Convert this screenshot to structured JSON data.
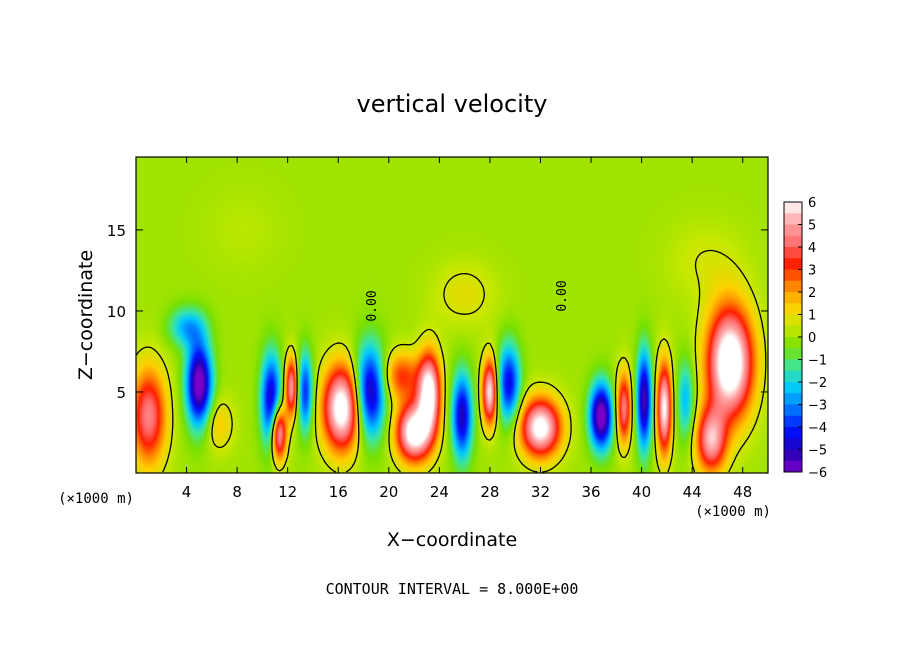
{
  "chart_data": {
    "type": "heatmap",
    "title": "vertical velocity",
    "xlabel": "X−coordinate",
    "ylabel": "Z−coordinate",
    "x_unit_label": "(×1000 m)",
    "y_unit_label": "(×1000 m)",
    "footer": "CONTOUR INTERVAL = 8.000E+00",
    "contour_label": "0.00",
    "xlim": [
      0,
      50
    ],
    "ylim": [
      0,
      19.5
    ],
    "x_ticks": [
      4,
      8,
      12,
      16,
      20,
      24,
      28,
      32,
      36,
      40,
      44,
      48
    ],
    "x_tick_labels": [
      "4",
      "8",
      "12",
      "16",
      "20",
      "24",
      "28",
      "32",
      "36",
      "40",
      "44",
      "48"
    ],
    "y_ticks": [
      5,
      10,
      15
    ],
    "y_tick_labels": [
      "5",
      "10",
      "15"
    ],
    "colorbar": {
      "min": -6,
      "max": 6,
      "tick_values": [
        6,
        5,
        4,
        3,
        2,
        1,
        0,
        -1,
        -2,
        -3,
        -4,
        -5,
        -6
      ],
      "tick_labels": [
        "6",
        "5",
        "4",
        "3",
        "2",
        "1",
        "0",
        "−1",
        "−2",
        "−3",
        "−4",
        "−5",
        "−6"
      ],
      "colors": [
        "#7a00c8",
        "#2400b4",
        "#0010ff",
        "#0070ff",
        "#00c8ff",
        "#3ce6a0",
        "#78e000",
        "#c8e800",
        "#ffd000",
        "#ff8200",
        "#ff1e00",
        "#ff6e6e",
        "#ffa8a8",
        "#ffffff"
      ]
    },
    "cells": [
      {
        "x": 1.0,
        "z": 3.5,
        "sx": 1.4,
        "sz": 3.0,
        "w": 4.5
      },
      {
        "x": 5.0,
        "z": 5.5,
        "sx": 1.0,
        "sz": 2.6,
        "w": -6.5
      },
      {
        "x": 4.0,
        "z": 9.0,
        "sx": 1.4,
        "sz": 1.2,
        "w": -2.5
      },
      {
        "x": 6.5,
        "z": 3.0,
        "sx": 1.2,
        "sz": 1.6,
        "w": 1.5
      },
      {
        "x": 11.3,
        "z": 2.5,
        "sx": 0.6,
        "sz": 1.7,
        "w": 6.0
      },
      {
        "x": 12.3,
        "z": 5.3,
        "sx": 0.5,
        "sz": 1.8,
        "w": 5.0
      },
      {
        "x": 10.7,
        "z": 4.5,
        "sx": 0.8,
        "sz": 2.8,
        "w": -5.0
      },
      {
        "x": 13.4,
        "z": 5.0,
        "sx": 0.6,
        "sz": 2.4,
        "w": -4.0
      },
      {
        "x": 16.3,
        "z": 4.0,
        "sx": 1.5,
        "sz": 2.6,
        "w": 6.8
      },
      {
        "x": 18.5,
        "z": 5.0,
        "sx": 1.2,
        "sz": 2.8,
        "w": -5.5
      },
      {
        "x": 22.0,
        "z": 2.5,
        "sx": 1.4,
        "sz": 1.8,
        "w": 6.8
      },
      {
        "x": 23.2,
        "z": 5.0,
        "sx": 0.9,
        "sz": 2.4,
        "w": 6.5
      },
      {
        "x": 21.0,
        "z": 6.0,
        "sx": 1.5,
        "sz": 1.5,
        "w": 3.0
      },
      {
        "x": 25.8,
        "z": 3.5,
        "sx": 0.8,
        "sz": 2.6,
        "w": -5.0
      },
      {
        "x": 28.0,
        "z": 5.0,
        "sx": 0.6,
        "sz": 2.0,
        "w": 6.0
      },
      {
        "x": 29.5,
        "z": 5.5,
        "sx": 0.9,
        "sz": 2.4,
        "w": -4.5
      },
      {
        "x": 32.0,
        "z": 2.8,
        "sx": 1.6,
        "sz": 1.8,
        "w": 6.5
      },
      {
        "x": 36.8,
        "z": 3.5,
        "sx": 0.9,
        "sz": 2.0,
        "w": -6.5
      },
      {
        "x": 38.6,
        "z": 4.0,
        "sx": 0.6,
        "sz": 2.2,
        "w": 4.5
      },
      {
        "x": 40.2,
        "z": 4.5,
        "sx": 0.6,
        "sz": 3.0,
        "w": -5.5
      },
      {
        "x": 41.8,
        "z": 4.0,
        "sx": 0.6,
        "sz": 2.8,
        "w": 6.0
      },
      {
        "x": 47.0,
        "z": 6.8,
        "sx": 1.8,
        "sz": 3.4,
        "w": 7.5
      },
      {
        "x": 45.5,
        "z": 2.0,
        "sx": 1.2,
        "sz": 2.0,
        "w": 5.0
      },
      {
        "x": 43.5,
        "z": 4.5,
        "sx": 0.7,
        "sz": 2.5,
        "w": -2.5
      },
      {
        "x": 8.5,
        "z": 15.0,
        "sx": 3.0,
        "sz": 2.5,
        "w": 0.3
      },
      {
        "x": 26.0,
        "z": 11.0,
        "sx": 2.5,
        "sz": 2.0,
        "w": 0.9
      },
      {
        "x": 45.0,
        "z": 13.0,
        "sx": 3.0,
        "sz": 2.5,
        "w": 0.6
      }
    ]
  }
}
